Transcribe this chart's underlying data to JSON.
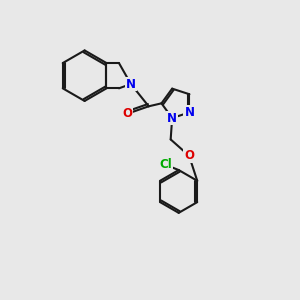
{
  "background_color": "#e8e8e8",
  "bond_color": "#1a1a1a",
  "bond_width": 1.5,
  "atom_colors": {
    "N": "#0000ee",
    "O": "#dd0000",
    "Cl": "#00aa00",
    "C": "#1a1a1a"
  },
  "font_size": 8.5,
  "figsize": [
    3.0,
    3.0
  ],
  "dpi": 100
}
